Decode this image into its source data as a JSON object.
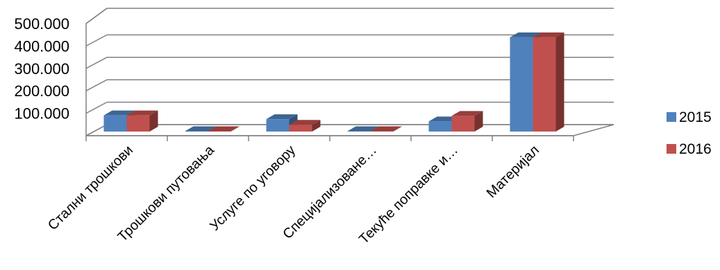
{
  "chart_data": {
    "type": "bar",
    "categories": [
      "Стални трошкови",
      "Трошкови путовања",
      "Услуге по уговору",
      "Специјализоване…",
      "Текуће поправке и…",
      "Материјал"
    ],
    "series": [
      {
        "name": "2015",
        "values": [
          72000,
          1500,
          55000,
          1500,
          45000,
          420000
        ],
        "color": "#4F81BD"
      },
      {
        "name": "2016",
        "values": [
          72000,
          1500,
          30000,
          1500,
          70000,
          420000
        ],
        "color": "#C0504D"
      }
    ],
    "ylim": [
      0,
      500000
    ],
    "yticks": [
      "500.000",
      "400.000",
      "300.000",
      "200.000",
      "100.000"
    ],
    "grid": true,
    "legend": "right",
    "style": "3d-clustered-column"
  }
}
